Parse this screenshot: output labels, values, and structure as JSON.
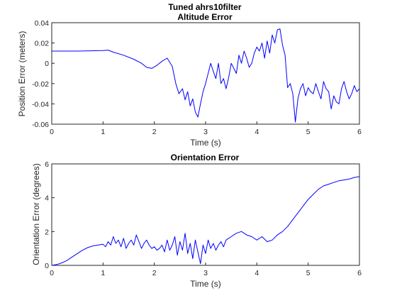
{
  "figure": {
    "suptitle": "Tuned ahrs10filter"
  },
  "colors": {
    "series": "#0000ff",
    "axis": "#262626",
    "background": "#ffffff"
  },
  "chart_data": [
    {
      "type": "line",
      "title": "Altitude Error",
      "xlabel": "Time (s)",
      "ylabel": "Position Error (meters)",
      "xlim": [
        0,
        6
      ],
      "ylim": [
        -0.06,
        0.04
      ],
      "xticks": [
        0,
        1,
        2,
        3,
        4,
        5,
        6
      ],
      "xtick_labels": [
        "0",
        "1",
        "2",
        "3",
        "4",
        "5",
        "6"
      ],
      "yticks": [
        -0.06,
        -0.04,
        -0.02,
        0,
        0.02,
        0.04
      ],
      "ytick_labels": [
        "-0.06",
        "-0.04",
        "-0.02",
        "0",
        "0.02",
        "0.04"
      ],
      "grid": false,
      "series": [
        {
          "x": [
            0,
            0.5,
            1.0,
            1.1,
            1.2,
            1.4,
            1.6,
            1.75,
            1.85,
            1.95,
            2.05,
            2.15,
            2.25,
            2.35,
            2.42,
            2.48,
            2.55,
            2.6,
            2.65,
            2.7,
            2.75,
            2.8,
            2.85,
            2.9,
            2.95,
            3.0,
            3.1,
            3.15,
            3.2,
            3.25,
            3.3,
            3.35,
            3.4,
            3.45,
            3.5,
            3.55,
            3.6,
            3.65,
            3.7,
            3.75,
            3.8,
            3.85,
            3.9,
            3.95,
            4.0,
            4.05,
            4.1,
            4.15,
            4.2,
            4.25,
            4.3,
            4.35,
            4.4,
            4.45,
            4.5,
            4.55,
            4.6,
            4.65,
            4.7,
            4.75,
            4.8,
            4.85,
            4.9,
            4.95,
            5.0,
            5.05,
            5.1,
            5.15,
            5.2,
            5.25,
            5.3,
            5.35,
            5.4,
            5.45,
            5.5,
            5.55,
            5.6,
            5.65,
            5.7,
            5.75,
            5.8,
            5.85,
            5.9,
            5.95,
            6.0
          ],
          "y": [
            0.012,
            0.012,
            0.0125,
            0.013,
            0.011,
            0.008,
            0.004,
            0.0,
            -0.004,
            -0.005,
            -0.002,
            0.002,
            0.005,
            -0.003,
            -0.02,
            -0.03,
            -0.025,
            -0.036,
            -0.028,
            -0.042,
            -0.035,
            -0.048,
            -0.053,
            -0.04,
            -0.028,
            -0.02,
            0.0,
            -0.008,
            -0.015,
            0.0,
            -0.02,
            -0.015,
            -0.025,
            -0.014,
            0.0,
            -0.005,
            -0.01,
            0.008,
            0.0,
            0.012,
            0.005,
            -0.004,
            0.0,
            0.01,
            0.016,
            0.012,
            0.02,
            0.005,
            0.022,
            0.01,
            0.028,
            0.02,
            0.033,
            0.034,
            0.018,
            0.008,
            -0.024,
            -0.02,
            -0.03,
            -0.058,
            -0.035,
            -0.025,
            -0.02,
            -0.032,
            -0.024,
            -0.028,
            -0.03,
            -0.02,
            -0.028,
            -0.035,
            -0.018,
            -0.025,
            -0.028,
            -0.045,
            -0.032,
            -0.038,
            -0.04,
            -0.025,
            -0.018,
            -0.028,
            -0.035,
            -0.03,
            -0.022,
            -0.028,
            -0.025
          ]
        }
      ]
    },
    {
      "type": "line",
      "title": "Orientation Error",
      "xlabel": "Time (s)",
      "ylabel": "Orientation Error (degrees)",
      "xlim": [
        0,
        6
      ],
      "ylim": [
        0,
        6
      ],
      "xticks": [
        0,
        1,
        2,
        3,
        4,
        5,
        6
      ],
      "xtick_labels": [
        "0",
        "1",
        "2",
        "3",
        "4",
        "5",
        "6"
      ],
      "yticks": [
        0,
        2,
        4,
        6
      ],
      "ytick_labels": [
        "0",
        "2",
        "4",
        "6"
      ],
      "grid": false,
      "series": [
        {
          "x": [
            0,
            0.1,
            0.2,
            0.3,
            0.4,
            0.5,
            0.6,
            0.7,
            0.8,
            0.9,
            1.0,
            1.05,
            1.1,
            1.15,
            1.2,
            1.25,
            1.3,
            1.35,
            1.4,
            1.45,
            1.5,
            1.55,
            1.6,
            1.65,
            1.7,
            1.75,
            1.8,
            1.85,
            1.9,
            1.95,
            2.0,
            2.05,
            2.1,
            2.15,
            2.2,
            2.25,
            2.3,
            2.35,
            2.4,
            2.45,
            2.5,
            2.55,
            2.6,
            2.65,
            2.7,
            2.75,
            2.8,
            2.85,
            2.9,
            2.95,
            3.0,
            3.05,
            3.1,
            3.15,
            3.2,
            3.25,
            3.3,
            3.35,
            3.4,
            3.5,
            3.6,
            3.7,
            3.8,
            3.9,
            4.0,
            4.1,
            4.2,
            4.3,
            4.4,
            4.5,
            4.6,
            4.7,
            4.8,
            4.9,
            5.0,
            5.1,
            5.2,
            5.3,
            5.4,
            5.5,
            5.6,
            5.7,
            5.8,
            5.9,
            6.0
          ],
          "y": [
            0.0,
            0.05,
            0.15,
            0.3,
            0.5,
            0.7,
            0.9,
            1.05,
            1.15,
            1.2,
            1.25,
            1.1,
            1.4,
            1.2,
            1.7,
            1.3,
            1.5,
            1.1,
            1.6,
            1.0,
            1.3,
            1.5,
            1.2,
            1.8,
            1.4,
            1.0,
            1.3,
            1.5,
            1.2,
            1.0,
            1.1,
            0.9,
            1.0,
            1.2,
            0.8,
            1.5,
            0.9,
            1.2,
            1.7,
            0.6,
            1.4,
            0.9,
            1.9,
            0.7,
            1.3,
            0.4,
            1.5,
            0.8,
            0.1,
            1.2,
            0.7,
            1.5,
            1.0,
            1.3,
            0.9,
            1.2,
            1.4,
            1.1,
            1.5,
            1.7,
            1.9,
            2.0,
            1.8,
            1.7,
            1.5,
            1.7,
            1.4,
            1.5,
            1.8,
            2.0,
            2.3,
            2.7,
            3.1,
            3.5,
            3.9,
            4.2,
            4.5,
            4.7,
            4.8,
            4.9,
            5.0,
            5.05,
            5.1,
            5.2,
            5.25
          ]
        }
      ]
    }
  ]
}
